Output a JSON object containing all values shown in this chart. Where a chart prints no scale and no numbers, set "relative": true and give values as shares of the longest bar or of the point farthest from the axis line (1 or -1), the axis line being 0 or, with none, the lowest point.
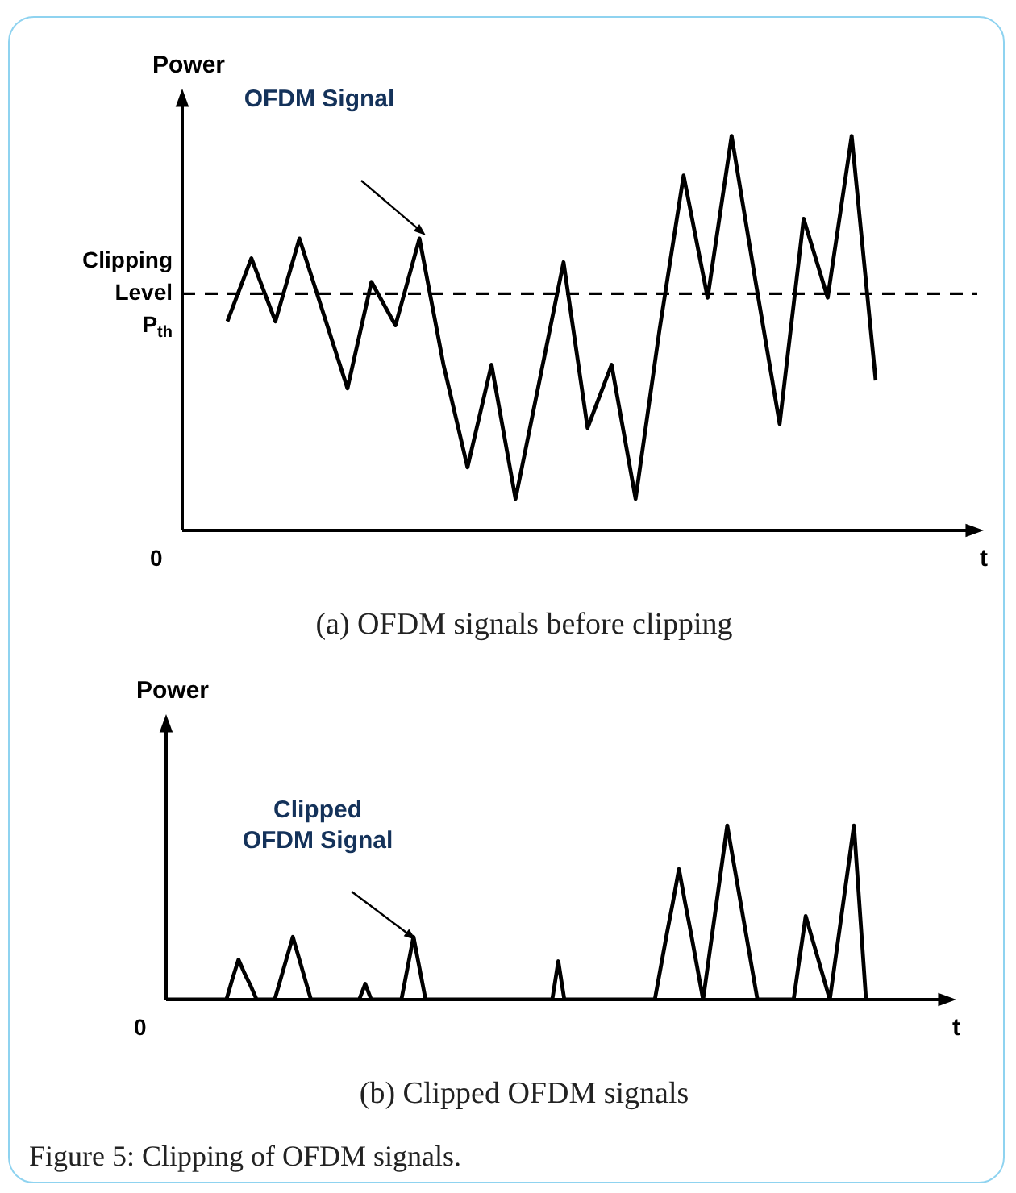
{
  "chart_data": [
    {
      "type": "line",
      "relative": true,
      "ylabel": "Power",
      "xlabel": "t",
      "categories": [
        null,
        null,
        null,
        null,
        null,
        null,
        null,
        null,
        null,
        null,
        null,
        null,
        null,
        null,
        null,
        null,
        null,
        null,
        null,
        null,
        null,
        null,
        null,
        null,
        null,
        null,
        null,
        null
      ],
      "series": [
        {
          "color": "#000000",
          "values": [
            0.53,
            0.69,
            0.53,
            0.74,
            0.55,
            0.36,
            0.63,
            0.52,
            0.74,
            0.42,
            0.16,
            0.42,
            0.08,
            0.38,
            0.68,
            0.26,
            0.42,
            0.08,
            0.51,
            0.9,
            0.59,
            1.0,
            0.63,
            0.27,
            0.79,
            0.59,
            1.0,
            0.38
          ]
        }
      ],
      "ref_lines": [
        {
          "axis": "y",
          "value": 0.6,
          "label": "Clipping Level P$_{th}$",
          "line_style": "dashed",
          "color": "#000000"
        }
      ],
      "annotations": [
        "OFDM Signal",
        "0",
        "(a) OFDM signals before clipping"
      ],
      "grid": false,
      "legend": false,
      "marker": "none",
      "line_style": "solid"
    },
    {
      "type": "line",
      "relative": true,
      "ylabel": "Power",
      "xlabel": "t",
      "categories": [
        null,
        null,
        null,
        null,
        null,
        null,
        null,
        null,
        null,
        null,
        null,
        null,
        null,
        null,
        null,
        null,
        null,
        null,
        null,
        null,
        null,
        null,
        null,
        null,
        null,
        null,
        null,
        null,
        null,
        null,
        null,
        null,
        null,
        null,
        null,
        null,
        null,
        null,
        null,
        null,
        null,
        null,
        null,
        null,
        null,
        null,
        null,
        null,
        null,
        null,
        null,
        null,
        null,
        null,
        null,
        null,
        null,
        null,
        null,
        null,
        null,
        null,
        null,
        null,
        null,
        null,
        null,
        null,
        null,
        null,
        null,
        null,
        null,
        null,
        null,
        null,
        null,
        null,
        null,
        null,
        null,
        null,
        null,
        null,
        null,
        null,
        null,
        null,
        null,
        null,
        null,
        null,
        null,
        null,
        null,
        null,
        null,
        null,
        null,
        null,
        null,
        null,
        null,
        null,
        null,
        null,
        null,
        null,
        null,
        null,
        null,
        null,
        null,
        null,
        null,
        null,
        null
      ],
      "series": [
        {
          "color": "#000000",
          "values": [
            0,
            0,
            0,
            0,
            0,
            0,
            0,
            0,
            0,
            0,
            0,
            0.12,
            0.23,
            0.15,
            0.08,
            0,
            0,
            0,
            0,
            0.12,
            0.24,
            0.36,
            0.24,
            0.12,
            0,
            0,
            0,
            0,
            0,
            0,
            0,
            0,
            0,
            0.09,
            0,
            0,
            0,
            0,
            0,
            0,
            0.18,
            0.36,
            0.18,
            0,
            0,
            0,
            0,
            0,
            0,
            0,
            0,
            0,
            0,
            0,
            0,
            0,
            0,
            0,
            0,
            0,
            0,
            0,
            0,
            0,
            0,
            0.22,
            0,
            0,
            0,
            0,
            0,
            0,
            0,
            0,
            0,
            0,
            0,
            0,
            0,
            0,
            0,
            0,
            0.19,
            0.38,
            0.56,
            0.75,
            0.56,
            0.38,
            0.19,
            0,
            0.25,
            0.5,
            0.75,
            1.0,
            0.8,
            0.6,
            0.4,
            0.2,
            0,
            0,
            0,
            0,
            0,
            0,
            0,
            0.24,
            0.48,
            0.36,
            0.24,
            0.12,
            0,
            0.25,
            0.5,
            0.75,
            1.0,
            0.5,
            0
          ]
        }
      ],
      "annotations": [
        "Clipped OFDM Signal",
        "0",
        "(b) Clipped OFDM signals",
        "Figure 5: Clipping of OFDM signals."
      ],
      "grid": false,
      "legend": false,
      "marker": "none",
      "line_style": "solid"
    }
  ]
}
